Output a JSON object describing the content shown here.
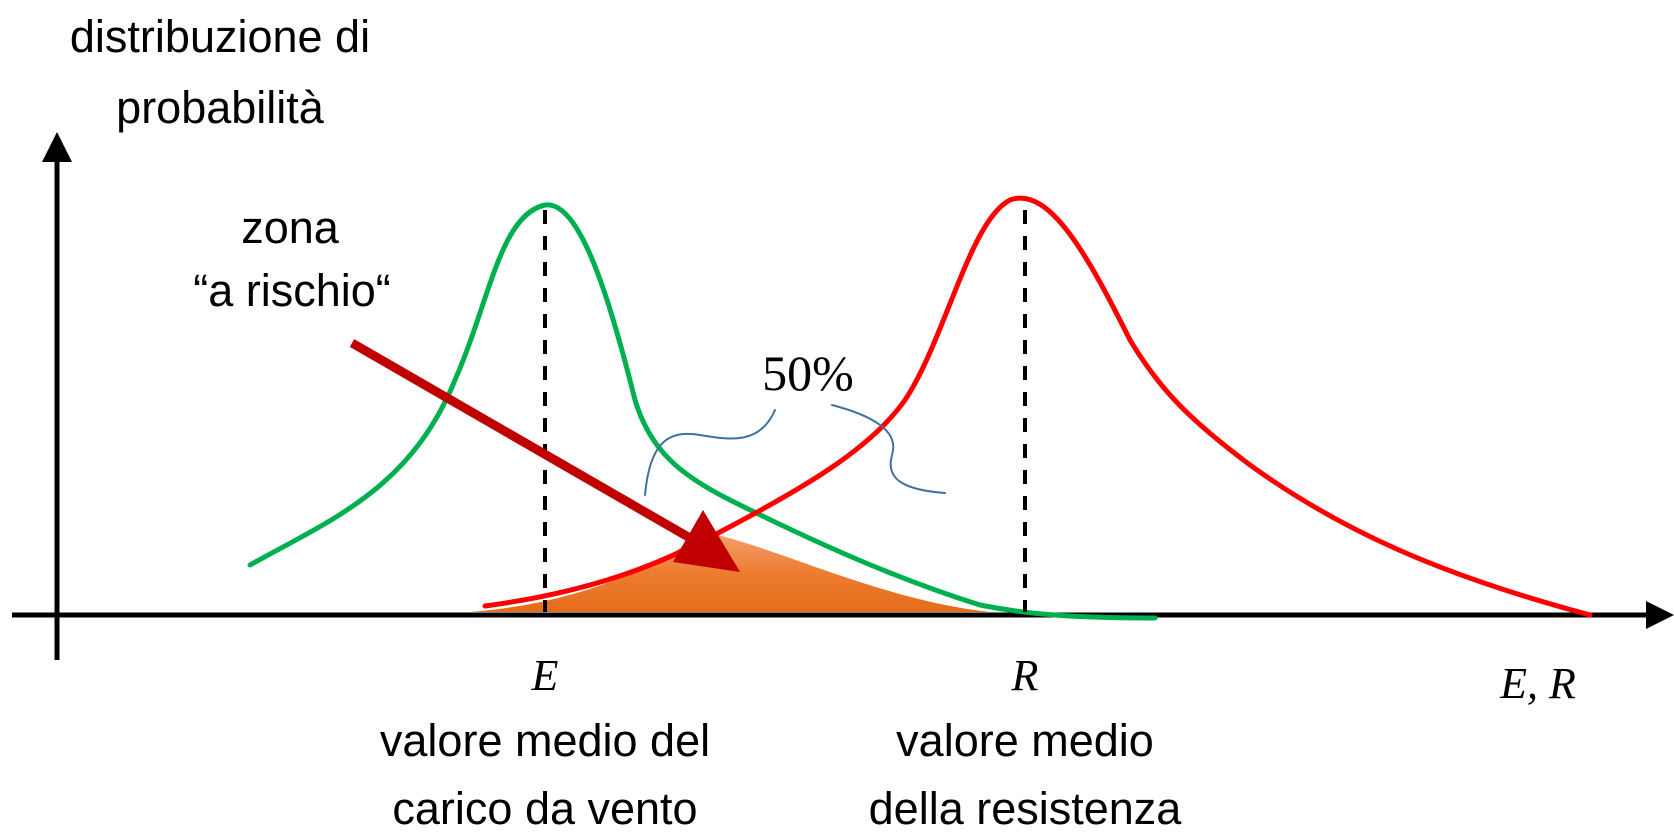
{
  "y_axis_label": {
    "line1": "distribuzione di",
    "line2": "probabilità"
  },
  "x_axis_label": "E, R",
  "risk_zone_label": {
    "line1": "zona",
    "line2": "“a rischio“"
  },
  "percent_label": "50%",
  "mean_load": {
    "symbol": "E",
    "caption_line1": "valore medio del",
    "caption_line2": "carico da vento"
  },
  "mean_resistance": {
    "symbol": "R",
    "caption_line1": "valore medio",
    "caption_line2": "della resistenza"
  },
  "colors": {
    "load_curve": "#00b050",
    "resistance_curve": "#ff0000",
    "risk_fill": "#ed7d31",
    "arrow": "#c00000",
    "brace": "#41719c",
    "axis": "#000000"
  }
}
